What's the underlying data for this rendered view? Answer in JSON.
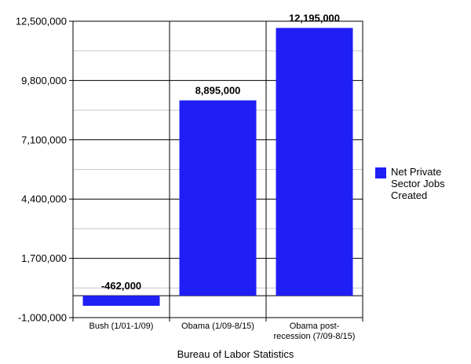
{
  "chart_data": {
    "type": "bar",
    "categories": [
      "Bush (1/01-1/09)",
      "Obama (1/09-8/15)",
      "Obama post-recession (7/09-8/15)"
    ],
    "category_lines": [
      [
        "Bush (1/01-1/09)"
      ],
      [
        "Obama (1/09-8/15)"
      ],
      [
        "Obama post-",
        "recession (7/09-8/15)"
      ]
    ],
    "series": [
      {
        "name": "Net Private Sector Jobs Created",
        "values": [
          -462000,
          8895000,
          12195000
        ],
        "color": "#1f1ff5"
      }
    ],
    "data_labels": [
      "-462,000",
      "8,895,000",
      "12,195,000"
    ],
    "ylim": [
      -1000000,
      12500000
    ],
    "yticks": [
      -1000000,
      1700000,
      4400000,
      7100000,
      9800000,
      12500000
    ],
    "ytick_labels": [
      "-1,000,000",
      "1,700,000",
      "4,400,000",
      "7,100,000",
      "9,800,000",
      "12,500,000"
    ],
    "xlabel": "Bureau of Labor Statistics",
    "title": "",
    "ylabel": "",
    "grid": true,
    "legend_position": "right"
  }
}
